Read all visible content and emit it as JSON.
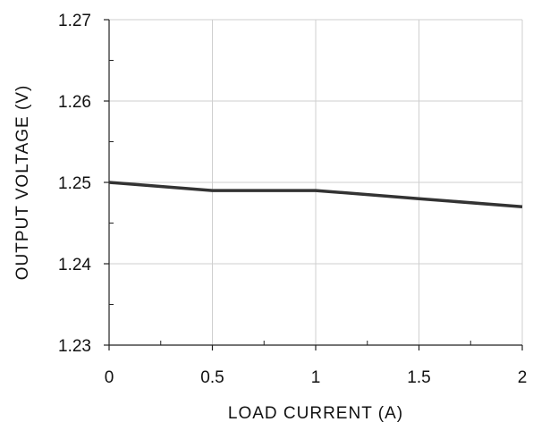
{
  "chart_data": {
    "type": "line",
    "title": "",
    "xlabel": "LOAD CURRENT (A)",
    "ylabel": "OUTPUT VOLTAGE (V)",
    "xlim": [
      0,
      2
    ],
    "ylim": [
      1.23,
      1.27
    ],
    "x_ticks": [
      "0",
      "0.5",
      "1",
      "1.5",
      "2"
    ],
    "y_ticks": [
      "1.23",
      "1.24",
      "1.25",
      "1.26",
      "1.27"
    ],
    "grid": true,
    "series": [
      {
        "x": [
          0,
          0.5,
          1,
          1.5,
          2
        ],
        "y": [
          1.25,
          1.249,
          1.249,
          1.248,
          1.247
        ],
        "color": "#333333"
      }
    ]
  }
}
